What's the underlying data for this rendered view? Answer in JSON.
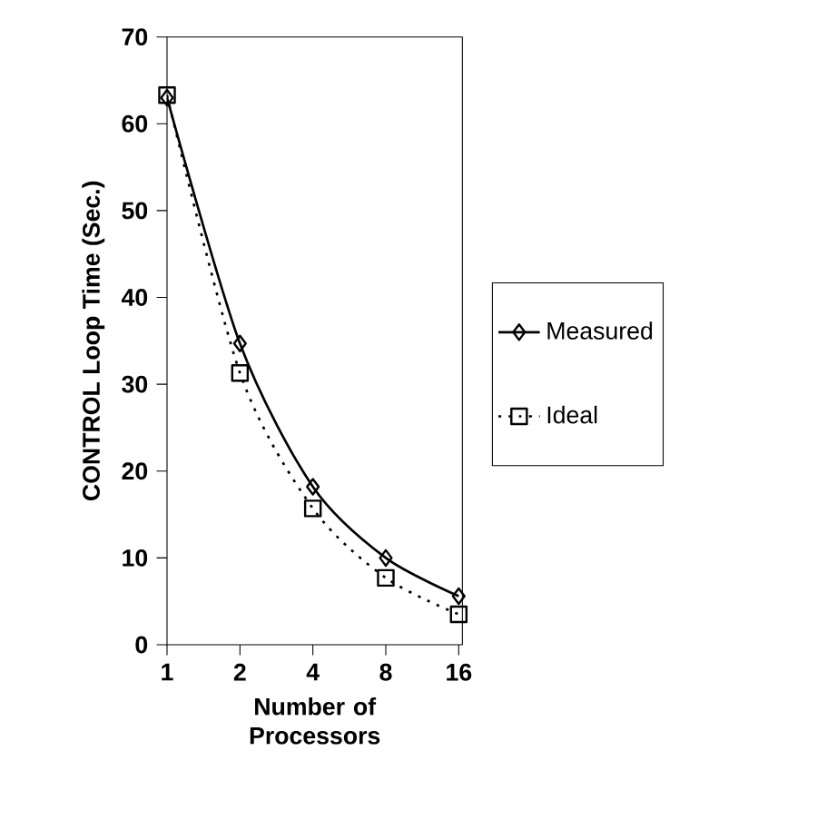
{
  "chart_data": {
    "type": "line",
    "xlabel": "Number of Processors",
    "ylabel": "CONTROL Loop Time (Sec.)",
    "categories": [
      "1",
      "2",
      "4",
      "8",
      "16"
    ],
    "series": [
      {
        "name": "Measured",
        "color": "#000000",
        "marker": "diamond",
        "line_style": "solid",
        "values": [
          63,
          34.7,
          18.2,
          10.0,
          5.6
        ]
      },
      {
        "name": "Ideal",
        "color": "#000000",
        "marker": "square",
        "line_style": "dotted",
        "values": [
          63.3,
          31.3,
          15.7,
          7.7,
          3.5
        ]
      }
    ],
    "ylim": [
      0,
      70
    ],
    "yticks": [
      0,
      10,
      20,
      30,
      40,
      50,
      60,
      70
    ],
    "legend": "right"
  }
}
